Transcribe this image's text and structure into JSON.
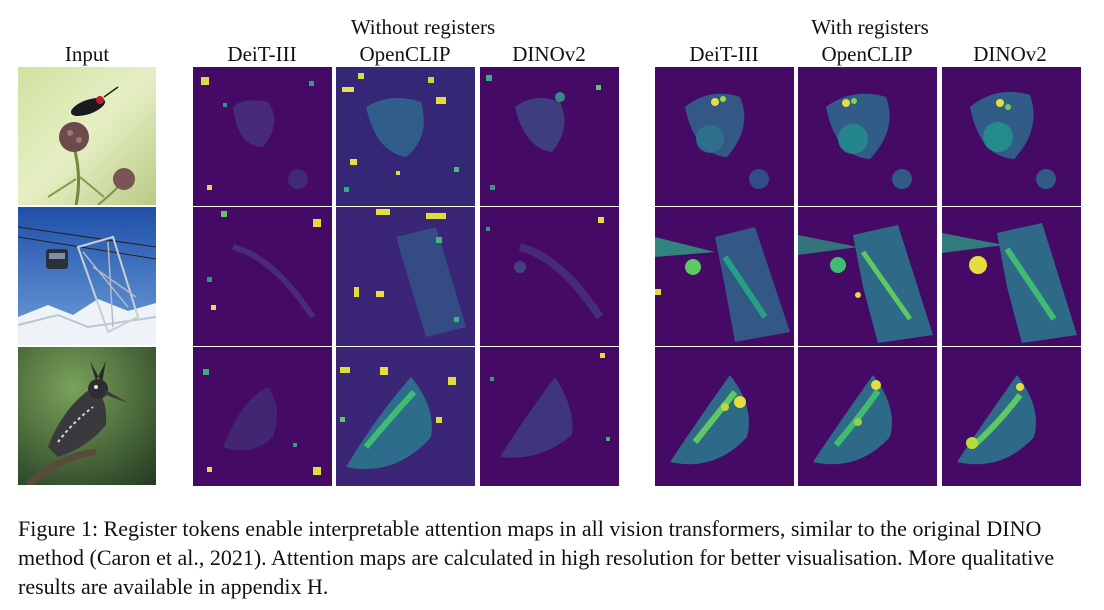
{
  "figure": {
    "group_titles": {
      "without": "Without registers",
      "with": "With registers"
    },
    "column_labels": {
      "input": "Input",
      "without": [
        "DeiT-III",
        "OpenCLIP",
        "DINOv2"
      ],
      "with": [
        "DeiT-III",
        "OpenCLIP",
        "DINOv2"
      ]
    },
    "rows": [
      {
        "subject": "insect on thistle flower"
      },
      {
        "subject": "cable car and pylon"
      },
      {
        "subject": "kingfisher on branch"
      }
    ],
    "colors": {
      "attention_background": "#440a66",
      "attention_mid": "#2f6b8e",
      "attention_high": "#21a585",
      "attention_peak": "#f0e442"
    }
  },
  "caption": {
    "text": "Figure 1: Register tokens enable  interpretable attention maps in all vision transformers, similar to the original DINO method (Caron et al., 2021). Attention maps are calculated in high resolution for better visualisation. More qualitative results are available in appendix H."
  }
}
